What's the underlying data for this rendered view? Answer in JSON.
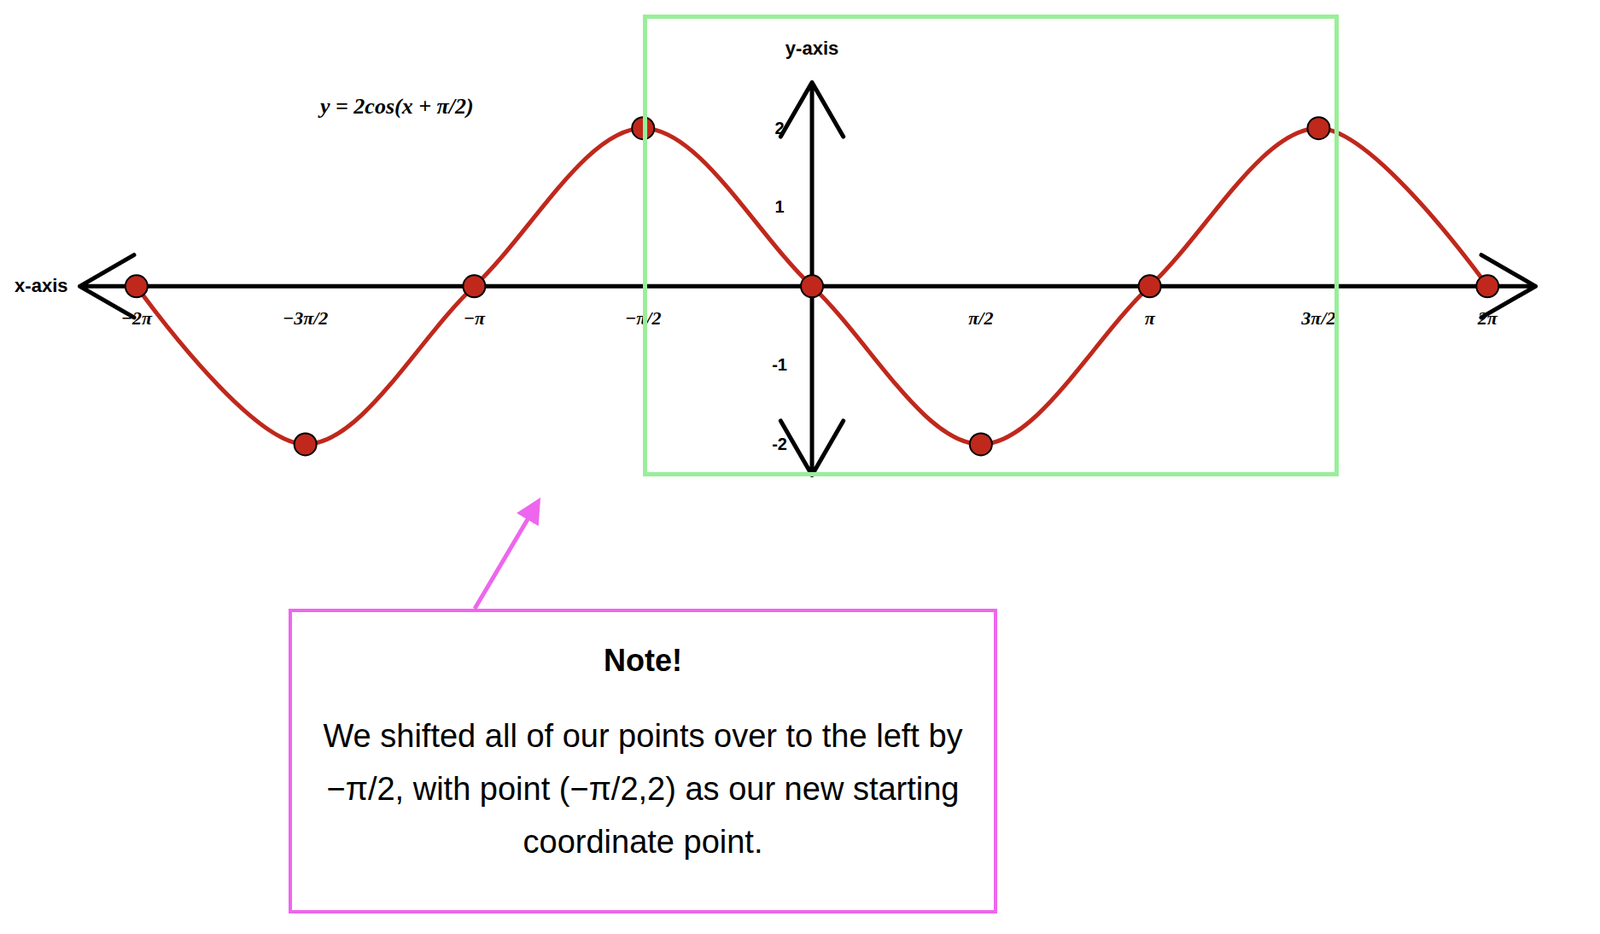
{
  "chart_data": {
    "type": "line",
    "title": "y = 2cos(x + π/2)",
    "x_label": "x-axis",
    "y_label": "y-axis",
    "x": [
      -6.2832,
      -4.7124,
      -3.1416,
      -1.5708,
      0,
      1.5708,
      3.1416,
      4.7124,
      6.2832
    ],
    "values": [
      0,
      -2,
      0,
      2,
      0,
      -2,
      0,
      2,
      0
    ],
    "color": "#c0281c",
    "marker": "circle",
    "xlim": [
      -6.81,
      6.73
    ],
    "ylim": [
      -2.39,
      2.58
    ],
    "xticks": [
      {
        "value": -6.2832,
        "label": "−2π"
      },
      {
        "value": -4.7124,
        "label": "−3π/2"
      },
      {
        "value": -3.1416,
        "label": "−π"
      },
      {
        "value": -1.5708,
        "label": "−π/2"
      },
      {
        "value": 1.5708,
        "label": "π/2"
      },
      {
        "value": 3.1416,
        "label": "π"
      },
      {
        "value": 4.7124,
        "label": "3π/2"
      },
      {
        "value": 6.2832,
        "label": "2π"
      }
    ],
    "yticks": [
      2,
      1,
      -1,
      -2
    ],
    "annotations": [
      {
        "title": "Note!",
        "text": "We shifted all of our points over to the left by −π/2, with point (−π/2,2) as our new starting coordinate point."
      }
    ]
  }
}
